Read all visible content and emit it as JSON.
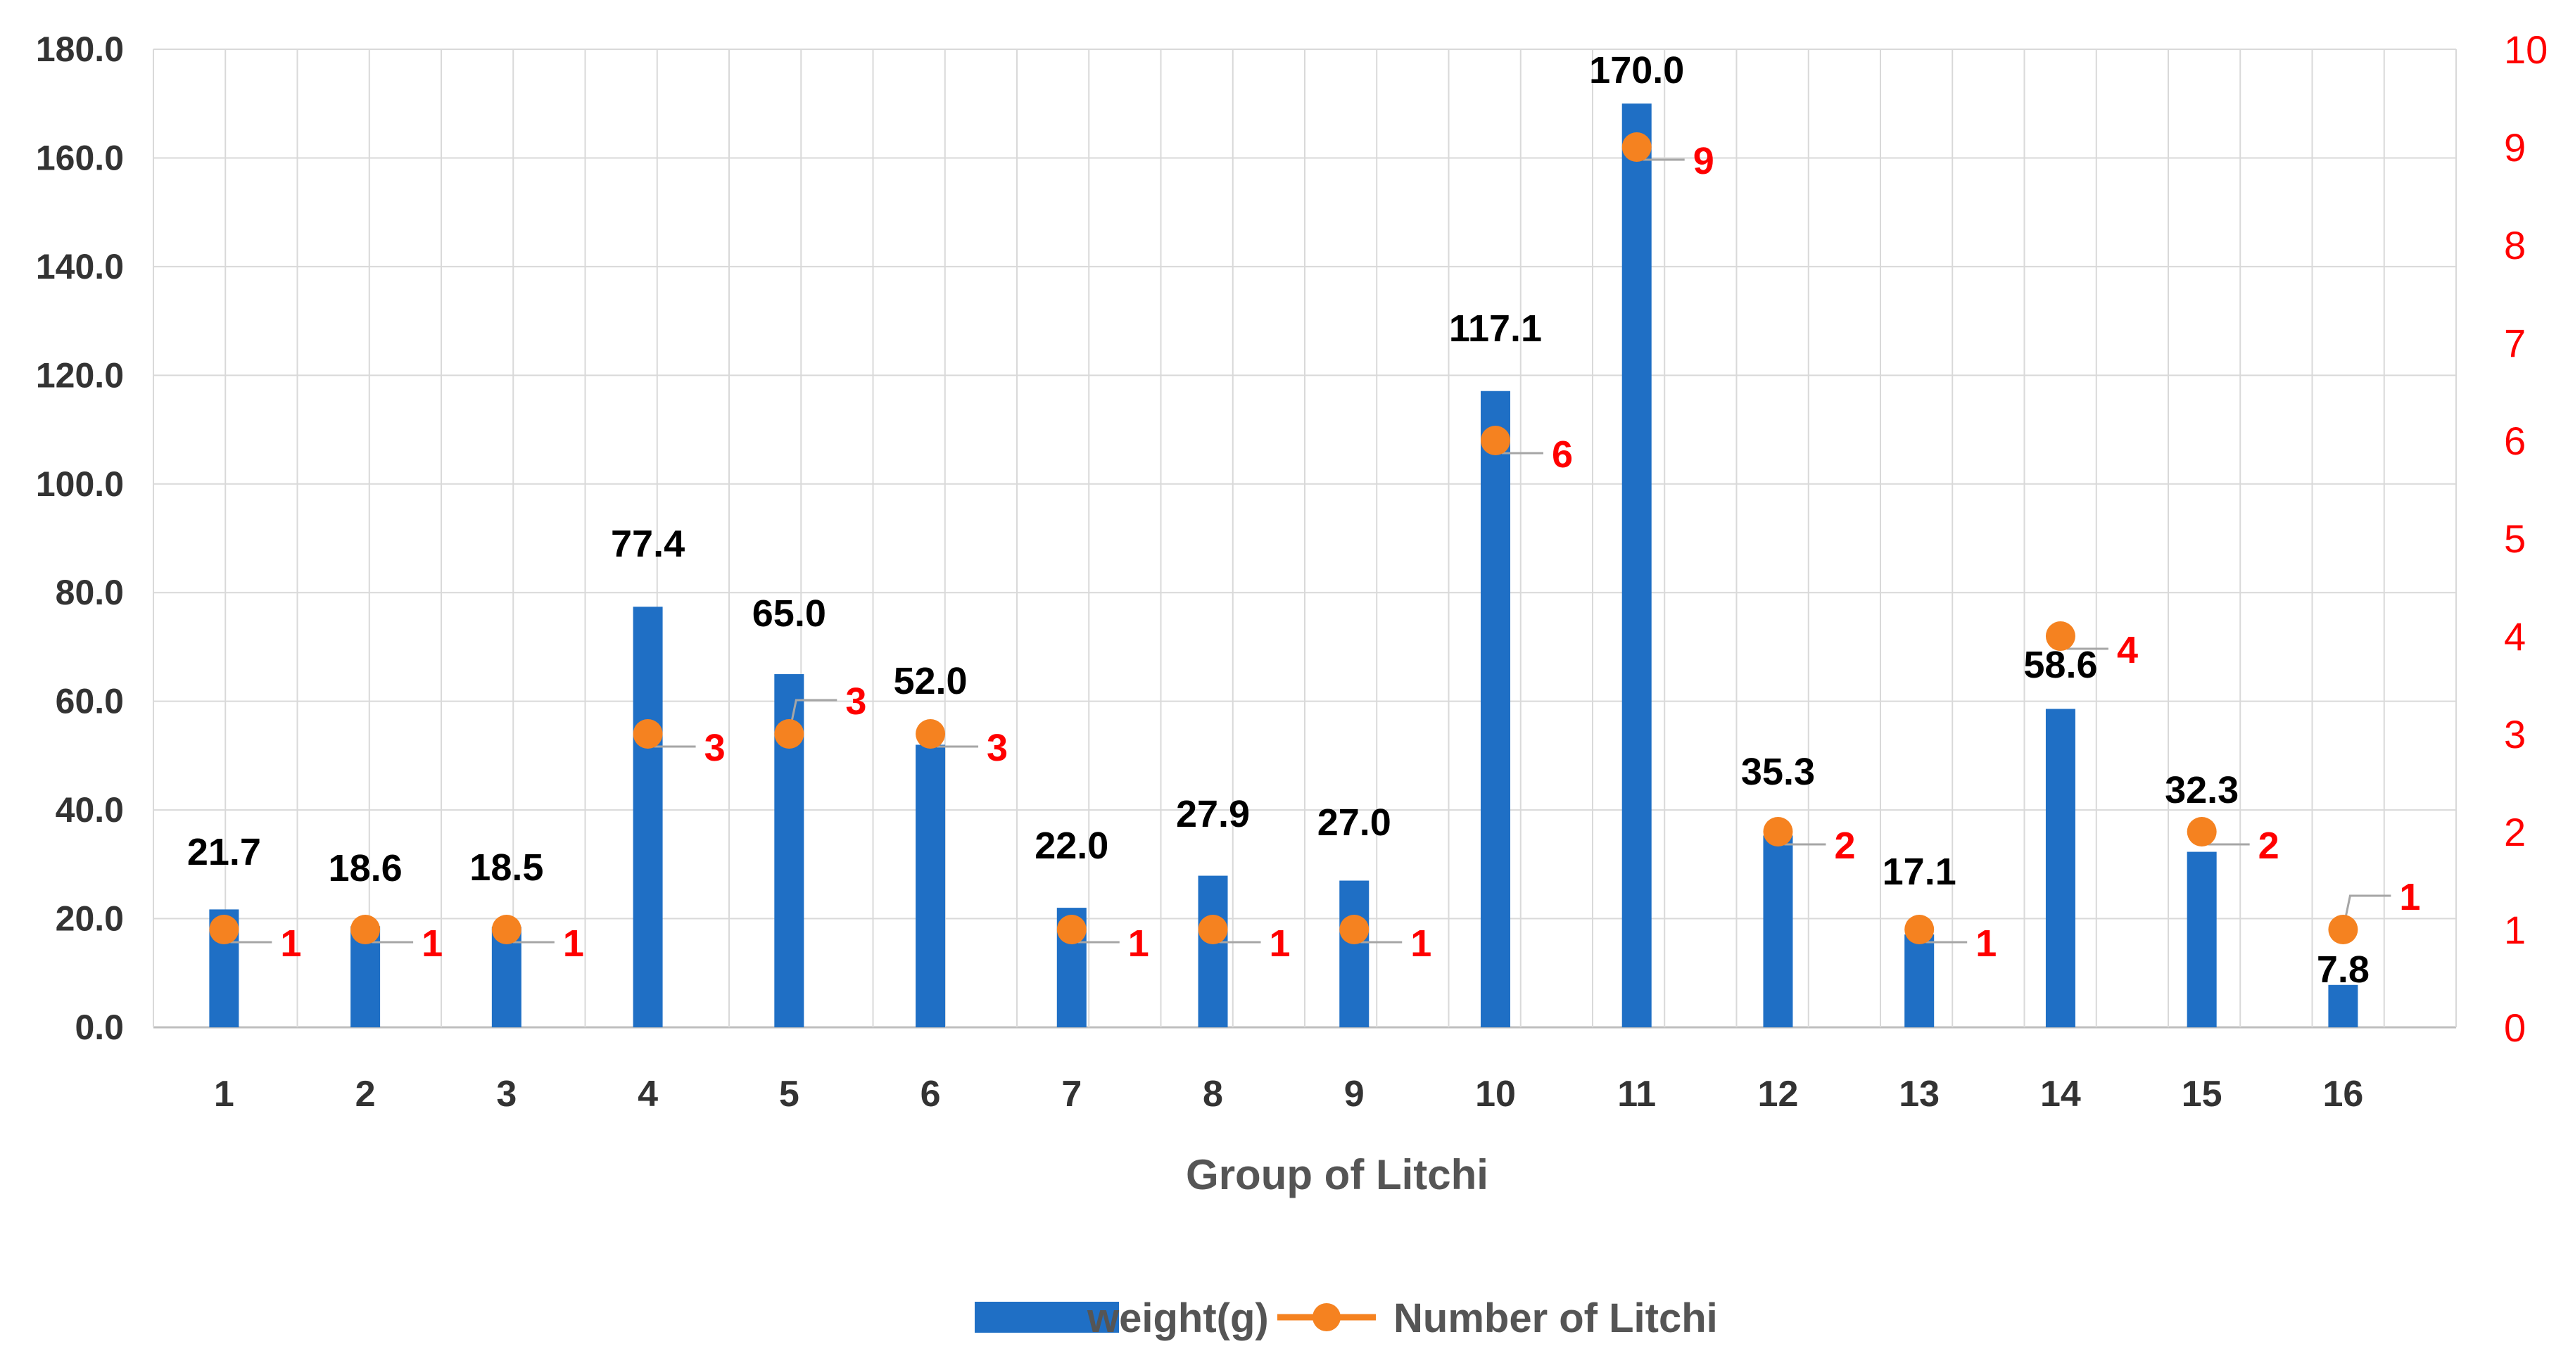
{
  "chart_data": {
    "type": "bar",
    "title": "",
    "xlabel": "Group of Litchi",
    "ylabel": "",
    "categories": [
      "1",
      "2",
      "3",
      "4",
      "5",
      "6",
      "7",
      "8",
      "9",
      "10",
      "11",
      "12",
      "13",
      "14",
      "15",
      "16"
    ],
    "series": [
      {
        "name": "weight(g)",
        "type": "bar",
        "axis": "left",
        "color": "#1f6fc5",
        "values": [
          21.7,
          18.6,
          18.5,
          77.4,
          65.0,
          52.0,
          22.0,
          27.9,
          27.0,
          117.1,
          170.0,
          35.3,
          17.1,
          58.6,
          32.3,
          7.8
        ],
        "labels": [
          "21.7",
          "18.6",
          "18.5",
          "77.4",
          "65.0",
          "52.0",
          "22.0",
          "27.9",
          "27.0",
          "117.1",
          "170.0",
          "35.3",
          "17.1",
          "58.6",
          "32.3",
          "7.8"
        ]
      },
      {
        "name": "Number of Litchi",
        "type": "line-markers",
        "axis": "right",
        "color": "#f58220",
        "values": [
          1,
          1,
          1,
          3,
          3,
          3,
          1,
          1,
          1,
          6,
          9,
          2,
          1,
          4,
          2,
          1
        ],
        "labels": [
          "1",
          "1",
          "1",
          "3",
          "3",
          "3",
          "1",
          "1",
          "1",
          "6",
          "9",
          "2",
          "1",
          "4",
          "2",
          "1"
        ]
      }
    ],
    "y_left": {
      "ylim": [
        0,
        180
      ],
      "ticks": [
        "0.0",
        "20.0",
        "40.0",
        "60.0",
        "80.0",
        "100.0",
        "120.0",
        "140.0",
        "160.0",
        "180.0"
      ]
    },
    "y_right": {
      "ylim": [
        0,
        10
      ],
      "ticks": [
        "0",
        "1",
        "2",
        "3",
        "4",
        "5",
        "6",
        "7",
        "8",
        "9",
        "10"
      ],
      "color": "#ff0000"
    },
    "grid": true,
    "legend": {
      "position": "bottom-center",
      "entries": [
        "weight(g)",
        "Number of Litchi"
      ]
    }
  }
}
